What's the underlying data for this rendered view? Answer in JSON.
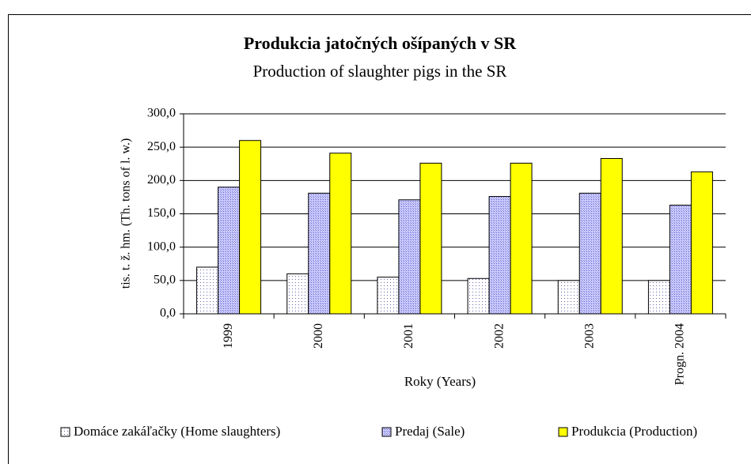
{
  "chart_data": {
    "type": "bar",
    "title": "Produkcia jatočných ošípaných v SR",
    "subtitle": "Production of slaughter pigs in the SR",
    "x_label": "Roky (Years)",
    "y_label": "tis. t. ž. hm. (Th. tons of l. w.)",
    "categories": [
      "1999",
      "2000",
      "2001",
      "2002",
      "2003",
      "Progn. 2004"
    ],
    "series": [
      {
        "name": "Domáce zakáľačky (Home slaughters)",
        "color": "#ffffff",
        "values": [
          70,
          60,
          55,
          53,
          50,
          50
        ]
      },
      {
        "name": "Predaj (Sale)",
        "color": "#ccccff",
        "values": [
          190,
          181,
          171,
          176,
          181,
          163
        ]
      },
      {
        "name": "Produkcia (Production)",
        "color": "#ffff00",
        "values": [
          260,
          241,
          226,
          226,
          233,
          213
        ]
      }
    ],
    "ylim": [
      0,
      300
    ],
    "yticks": [
      {
        "value": 0,
        "label": "0,0"
      },
      {
        "value": 50,
        "label": "50,0"
      },
      {
        "value": 100,
        "label": "100,0"
      },
      {
        "value": 150,
        "label": "150,0"
      },
      {
        "value": 200,
        "label": "200,0"
      },
      {
        "value": 250,
        "label": "250,0"
      },
      {
        "value": 300,
        "label": "300,0"
      }
    ],
    "grid": true,
    "legend": "bottom"
  }
}
